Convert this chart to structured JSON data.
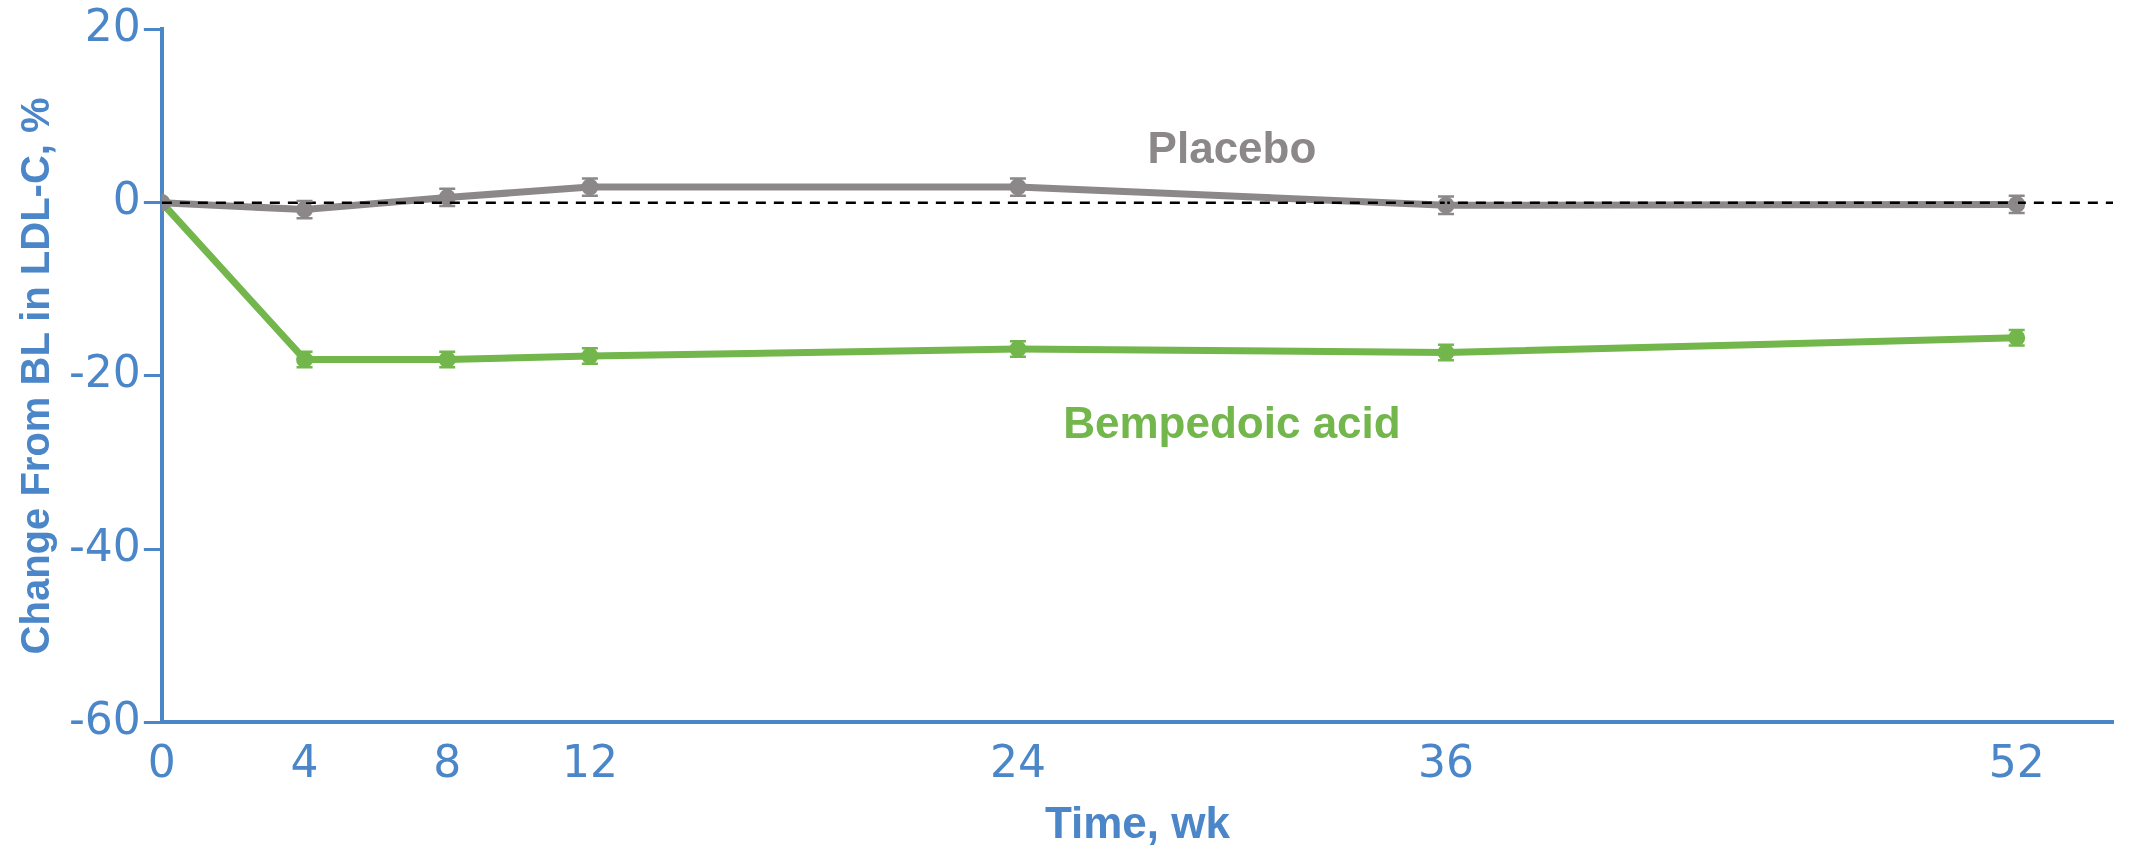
{
  "chart_data": {
    "type": "line",
    "xlabel": "Time, wk",
    "ylabel": "Change From BL in LDL-C, %",
    "xlim": [
      0,
      54.7
    ],
    "xticks": [
      0,
      4,
      8,
      12,
      24,
      36,
      52
    ],
    "ylim": [
      -60,
      20
    ],
    "yticks": [
      -60,
      -40,
      -20,
      0,
      20
    ],
    "grid": false,
    "legend": false,
    "marker": "circle",
    "line_style": "solid",
    "series": [
      {
        "name": "Placebo",
        "color": "#8c8889",
        "x": [
          0,
          4,
          8,
          12,
          24,
          36,
          52
        ],
        "values": [
          0,
          -0.8,
          0.6,
          1.8,
          1.8,
          -0.3,
          -0.2
        ],
        "errors": [
          null,
          1,
          1,
          1,
          1,
          1,
          1
        ]
      },
      {
        "name": "Bempedoic acid",
        "color": "#72b64c",
        "x": [
          0,
          4,
          8,
          12,
          24,
          36,
          52
        ],
        "values": [
          0,
          -18.1,
          -18.1,
          -17.7,
          -16.9,
          -17.3,
          -15.6
        ],
        "errors": [
          null,
          0.9,
          0.9,
          0.9,
          0.9,
          0.9,
          0.9
        ]
      }
    ],
    "ref_lines": [
      {
        "axis": "y",
        "value": 0,
        "color": "#000000",
        "line_style": "dashed"
      }
    ]
  }
}
